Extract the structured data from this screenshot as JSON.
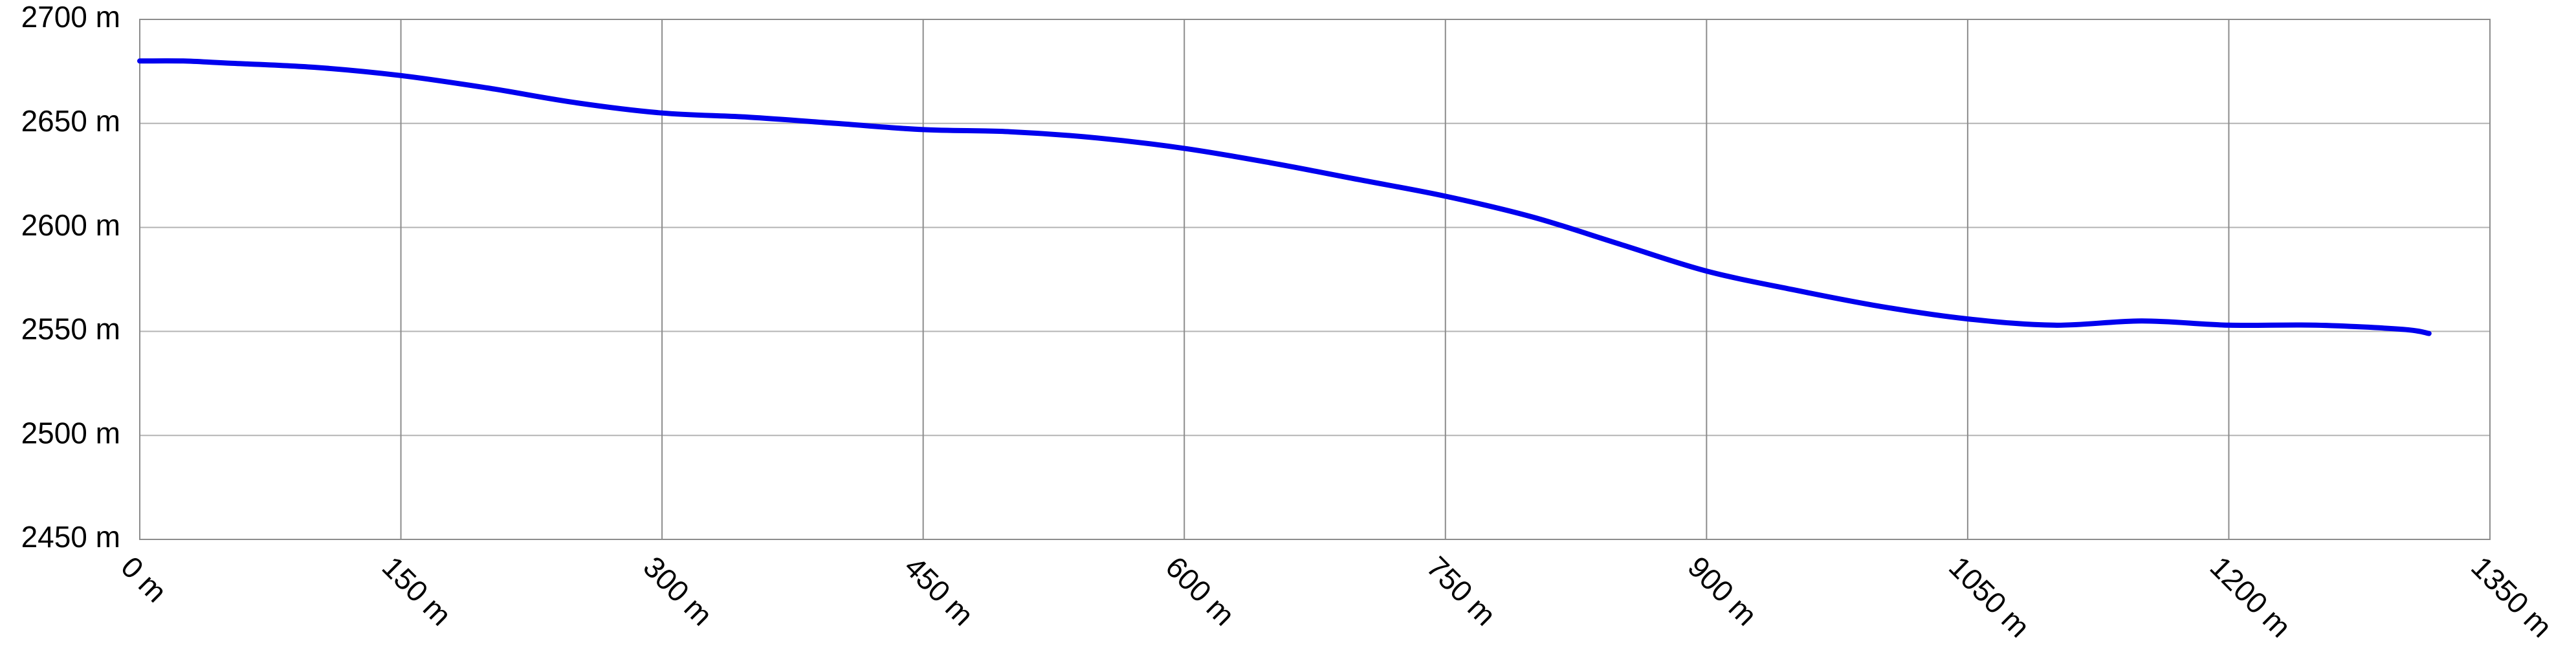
{
  "chart_data": {
    "type": "line",
    "title": "",
    "xlabel": "",
    "ylabel": "",
    "x_unit": "m",
    "y_unit": "m",
    "xlim": [
      0,
      1350
    ],
    "ylim": [
      2450,
      2700
    ],
    "x_ticks": [
      0,
      150,
      300,
      450,
      600,
      750,
      900,
      1050,
      1200,
      1350
    ],
    "y_ticks": [
      2450,
      2500,
      2550,
      2600,
      2650,
      2700
    ],
    "x_tick_labels": [
      "0 m",
      "150 m",
      "300 m",
      "450 m",
      "600 m",
      "750 m",
      "900 m",
      "1050 m",
      "1200 m",
      "1350 m"
    ],
    "y_tick_labels": [
      "2450 m",
      "2500 m",
      "2550 m",
      "2600 m",
      "2650 m",
      "2700 m"
    ],
    "grid": true,
    "legend": "none",
    "series": [
      {
        "color": "#0000ee",
        "x": [
          0,
          25,
          50,
          100,
          150,
          200,
          250,
          300,
          350,
          400,
          450,
          500,
          550,
          600,
          650,
          700,
          750,
          800,
          850,
          900,
          950,
          1000,
          1050,
          1100,
          1150,
          1200,
          1250,
          1300,
          1315
        ],
        "y": [
          2680,
          2680,
          2679,
          2677,
          2673,
          2667,
          2660,
          2655,
          2653,
          2650,
          2647,
          2646,
          2643,
          2638,
          2631,
          2623,
          2615,
          2605,
          2592,
          2579,
          2570,
          2562,
          2556,
          2553,
          2555,
          2553,
          2553,
          2551,
          2549
        ]
      }
    ]
  }
}
